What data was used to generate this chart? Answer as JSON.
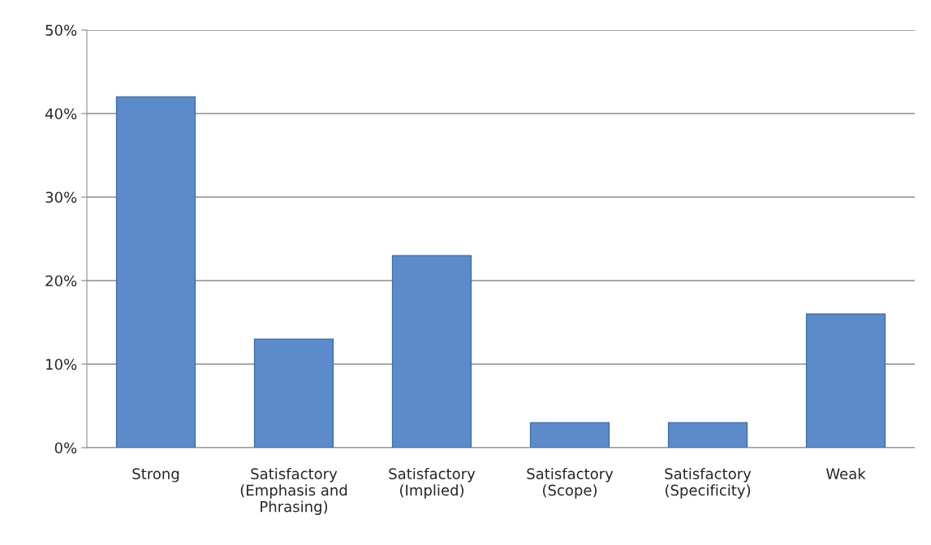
{
  "chart_data": {
    "type": "bar",
    "categories": [
      "Strong",
      "Satisfactory\n(Emphasis and\nPhrasing)",
      "Satisfactory\n(Implied)",
      "Satisfactory\n(Scope)",
      "Satisfactory\n(Specificity)",
      "Weak"
    ],
    "values": [
      42,
      13,
      23,
      3,
      3,
      16
    ],
    "color": "#5b8bcb",
    "ylim": [
      0,
      50
    ],
    "yticks": [
      {
        "value": 0,
        "label": "0%"
      },
      {
        "value": 10,
        "label": "10%"
      },
      {
        "value": 20,
        "label": "20%"
      },
      {
        "value": 30,
        "label": "30%"
      },
      {
        "value": 40,
        "label": "40%"
      },
      {
        "value": 50,
        "label": "50%"
      }
    ],
    "grid": "y"
  }
}
